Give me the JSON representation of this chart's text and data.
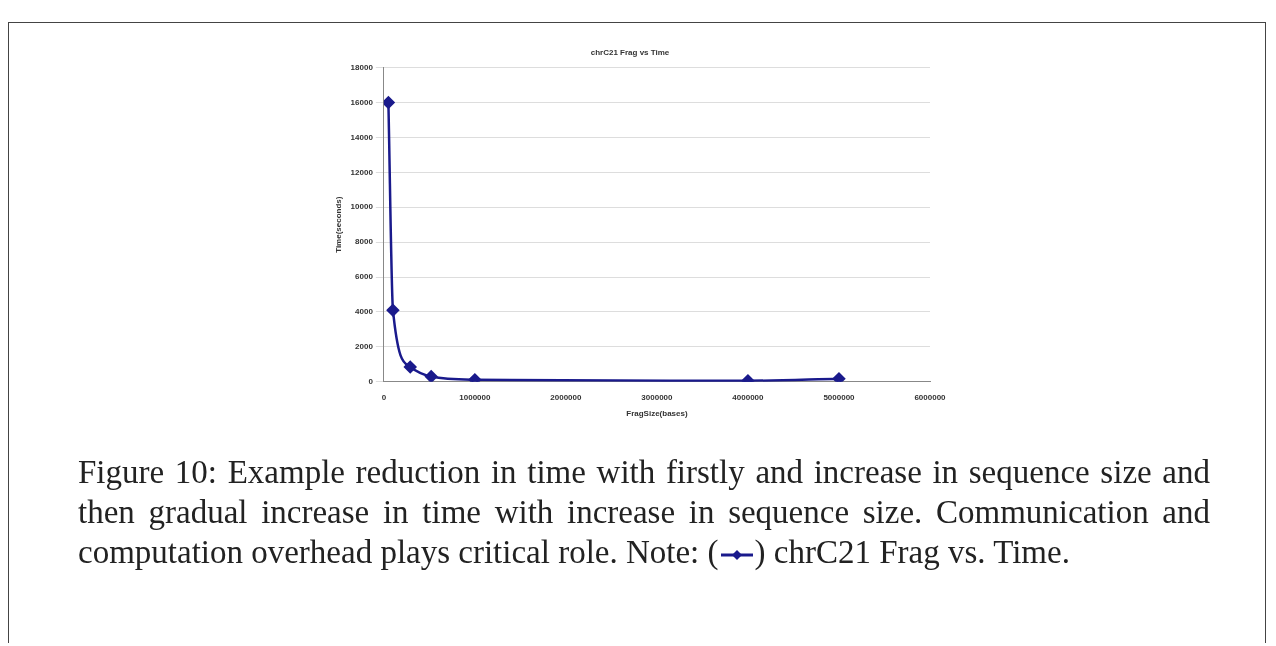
{
  "chart_data": {
    "type": "line",
    "title": "chrC21 Frag vs Time",
    "xlabel": "FragSize(bases)",
    "ylabel": "Time(seconds)",
    "series": [
      {
        "color": "#1a1a8c",
        "x": [
          50000,
          100000,
          290000,
          520000,
          1000000,
          4000000,
          5000000
        ],
        "values": [
          16000,
          4100,
          850,
          300,
          120,
          60,
          180
        ]
      }
    ],
    "xlim": [
      0,
      6000000
    ],
    "xticks": [
      0,
      1000000,
      2000000,
      3000000,
      4000000,
      5000000,
      6000000
    ],
    "ylim": [
      0,
      18000
    ],
    "yticks": [
      0,
      2000,
      4000,
      6000,
      8000,
      10000,
      12000,
      14000,
      16000,
      18000
    ],
    "grid": "y",
    "marker": "diamond",
    "line_style": "solid",
    "annotations": [
      "Figure 10: Example reduction in time with firstly and increase in sequence size and then gradual increase in time with increase in sequence size. Communication and computation overhead plays critical role. Note: (",
      ") chrC21 Frag vs. Time."
    ]
  }
}
